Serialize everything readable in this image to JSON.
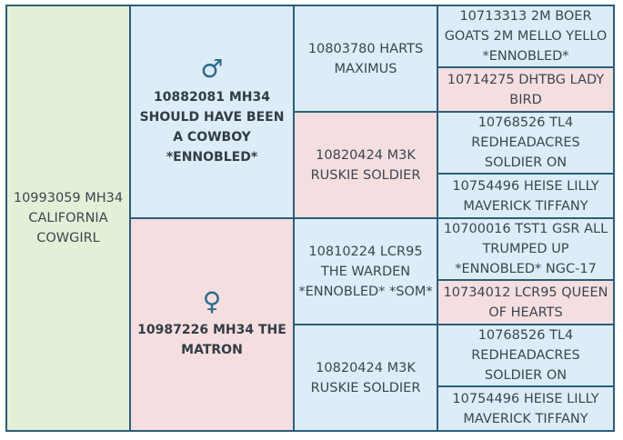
{
  "colors": {
    "green": "#e3efd6",
    "blue": "#dcedf7",
    "pink": "#f5dee0",
    "border": "#2c5e78"
  },
  "pedigree": {
    "subject": {
      "name": "10993059 MH34 CALIFORNIA COWGIRL"
    },
    "sire": {
      "symbol": "♂",
      "name": "10882081 MH34 SHOULD HAVE BEEN A COWBOY *ENNOBLED*"
    },
    "dam": {
      "symbol": "♀",
      "name": "10987226 MH34 THE MATRON"
    },
    "sire_sire": "10803780 HARTS MAXIMUS",
    "sire_dam": "10820424 M3K RUSKIE SOLDIER",
    "dam_sire": "10810224 LCR95 THE WARDEN *ENNOBLED* *SOM*",
    "dam_dam": "10820424 M3K RUSKIE SOLDIER",
    "g3": [
      "10713313 2M BOER GOATS 2M MELLO YELLO *ENNOBLED*",
      "10714275 DHTBG LADY BIRD",
      "10768526 TL4 REDHEADACRES SOLDIER ON",
      "10754496 HEISE LILLY MAVERICK TIFFANY",
      "10700016 TST1 GSR ALL TRUMPED UP *ENNOBLED* NGC-17",
      "10734012 LCR95 QUEEN OF HEARTS",
      "10768526 TL4 REDHEADACRES SOLDIER ON",
      "10754496 HEISE LILLY MAVERICK TIFFANY"
    ]
  }
}
